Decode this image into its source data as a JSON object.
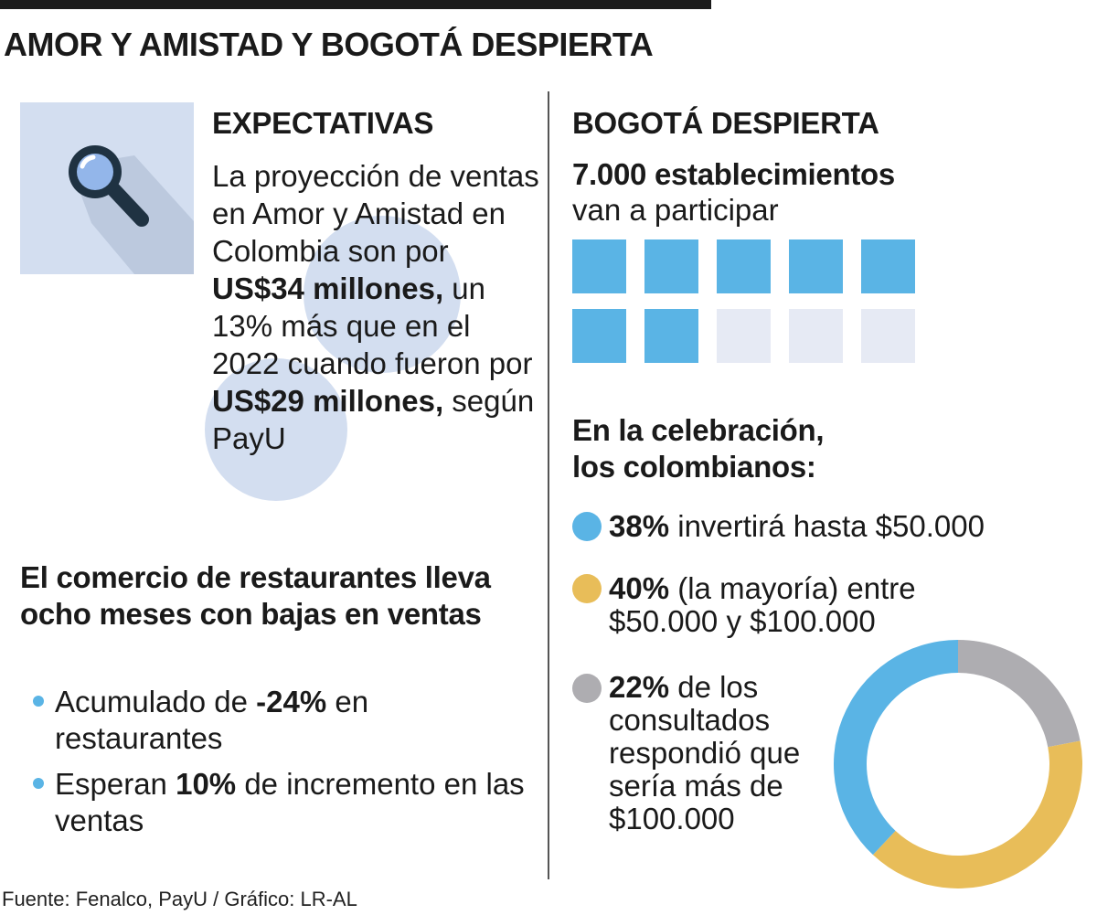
{
  "title": "AMOR Y AMISTAD Y BOGOTÁ DESPIERTA",
  "icons": {
    "search": "magnifying-glass-icon"
  },
  "expectativas": {
    "heading": "EXPECTATIVAS",
    "t1": "La proyección de ventas en Amor y Amistad en Colombia son por ",
    "b1": "US$34 millones,",
    "t2": " un 13% más que en el 2022 cuando fueron por ",
    "b2": "US$29 millones,",
    "t3": " según PayU"
  },
  "restaurantes": {
    "heading": "El comercio de restaurantes lleva ocho meses con bajas en ventas",
    "items": [
      {
        "pre": "Acumulado de ",
        "bold": "-24%",
        "post": " en restaurantes"
      },
      {
        "pre": "Esperan ",
        "bold": "10%",
        "post": " de incremento en las ventas"
      }
    ]
  },
  "bogota": {
    "heading": "BOGOTÁ DESPIERTA",
    "count": "7.000 establecimientos",
    "count_sub": "van a participar"
  },
  "celebracion": {
    "heading": "En la celebración, los colombianos:",
    "legend": [
      {
        "bold": "38%",
        "text": " invertirá hasta $50.000"
      },
      {
        "bold": "40%",
        "text": " (la mayoría) entre $50.000 y $100.000"
      },
      {
        "bold": "22%",
        "text": " de los consultados respondió que sería más de $100.000"
      }
    ]
  },
  "source": "Fuente: Fenalco, PayU / Gráfico: LR-AL",
  "colors": {
    "blue": "#5ab4e5",
    "yellow": "#e8bd59",
    "gray": "#aeadb1",
    "light_blue": "#d3def0",
    "pale": "#e6eaf4",
    "dark_navy": "#1f3242"
  },
  "chart_data": [
    {
      "type": "table",
      "title": "BOGOTÁ DESPIERTA",
      "filled_squares": 7,
      "total_squares": 10,
      "caption": "7.000 establecimientos van a participar"
    },
    {
      "type": "pie",
      "title": "En la celebración, los colombianos:",
      "donut": true,
      "labels": [
        "invertirá hasta $50.000",
        "(la mayoría) entre $50.000 y $100.000",
        "de los consultados respondió que sería más de $100.000"
      ],
      "values": [
        38,
        40,
        22
      ],
      "colors": [
        "#5ab4e5",
        "#e8bd59",
        "#aeadb1"
      ]
    }
  ]
}
